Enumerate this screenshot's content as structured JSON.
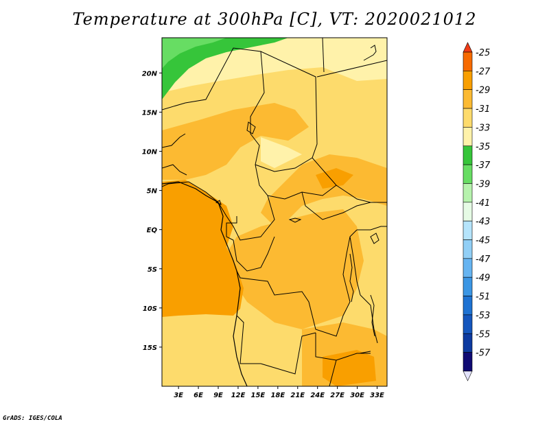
{
  "title": "Temperature at 300hPa [C], VT: 2020021012",
  "credit": "GrADS: IGES/COLA",
  "map": {
    "lat_range": [
      -20,
      24.5
    ],
    "lon_range": [
      0.5,
      34.5
    ],
    "lat_labels": [
      {
        "text": "20N",
        "value": 20
      },
      {
        "text": "15N",
        "value": 15
      },
      {
        "text": "10N",
        "value": 10
      },
      {
        "text": "5N",
        "value": 5
      },
      {
        "text": "EQ",
        "value": 0
      },
      {
        "text": "5S",
        "value": -5
      },
      {
        "text": "10S",
        "value": -10
      },
      {
        "text": "15S",
        "value": -15
      }
    ],
    "lon_labels": [
      {
        "text": "3E",
        "value": 3
      },
      {
        "text": "6E",
        "value": 6
      },
      {
        "text": "9E",
        "value": 9
      },
      {
        "text": "12E",
        "value": 12
      },
      {
        "text": "15E",
        "value": 15
      },
      {
        "text": "18E",
        "value": 18
      },
      {
        "text": "21E",
        "value": 21
      },
      {
        "text": "24E",
        "value": 24
      },
      {
        "text": "27E",
        "value": 27
      },
      {
        "text": "30E",
        "value": 30
      },
      {
        "text": "33E",
        "value": 33
      }
    ]
  },
  "colorbar": {
    "levels": [
      "-25",
      "-27",
      "-29",
      "-31",
      "-33",
      "-35",
      "-37",
      "-39",
      "-41",
      "-43",
      "-45",
      "-47",
      "-49",
      "-51",
      "-53",
      "-55",
      "-57"
    ],
    "colors_top_to_bottom": [
      "#f03c16",
      "#f76a00",
      "#f99f00",
      "#fcba32",
      "#fddb6c",
      "#fff2aa",
      "#36c53a",
      "#67dd63",
      "#b6f2ad",
      "#e6fbe5",
      "#b5e4fb",
      "#91cff6",
      "#66b4f1",
      "#3b96e4",
      "#1e72d2",
      "#1456bd",
      "#0d3aa0",
      "#0f0a73",
      "#e3e3fb"
    ]
  }
}
